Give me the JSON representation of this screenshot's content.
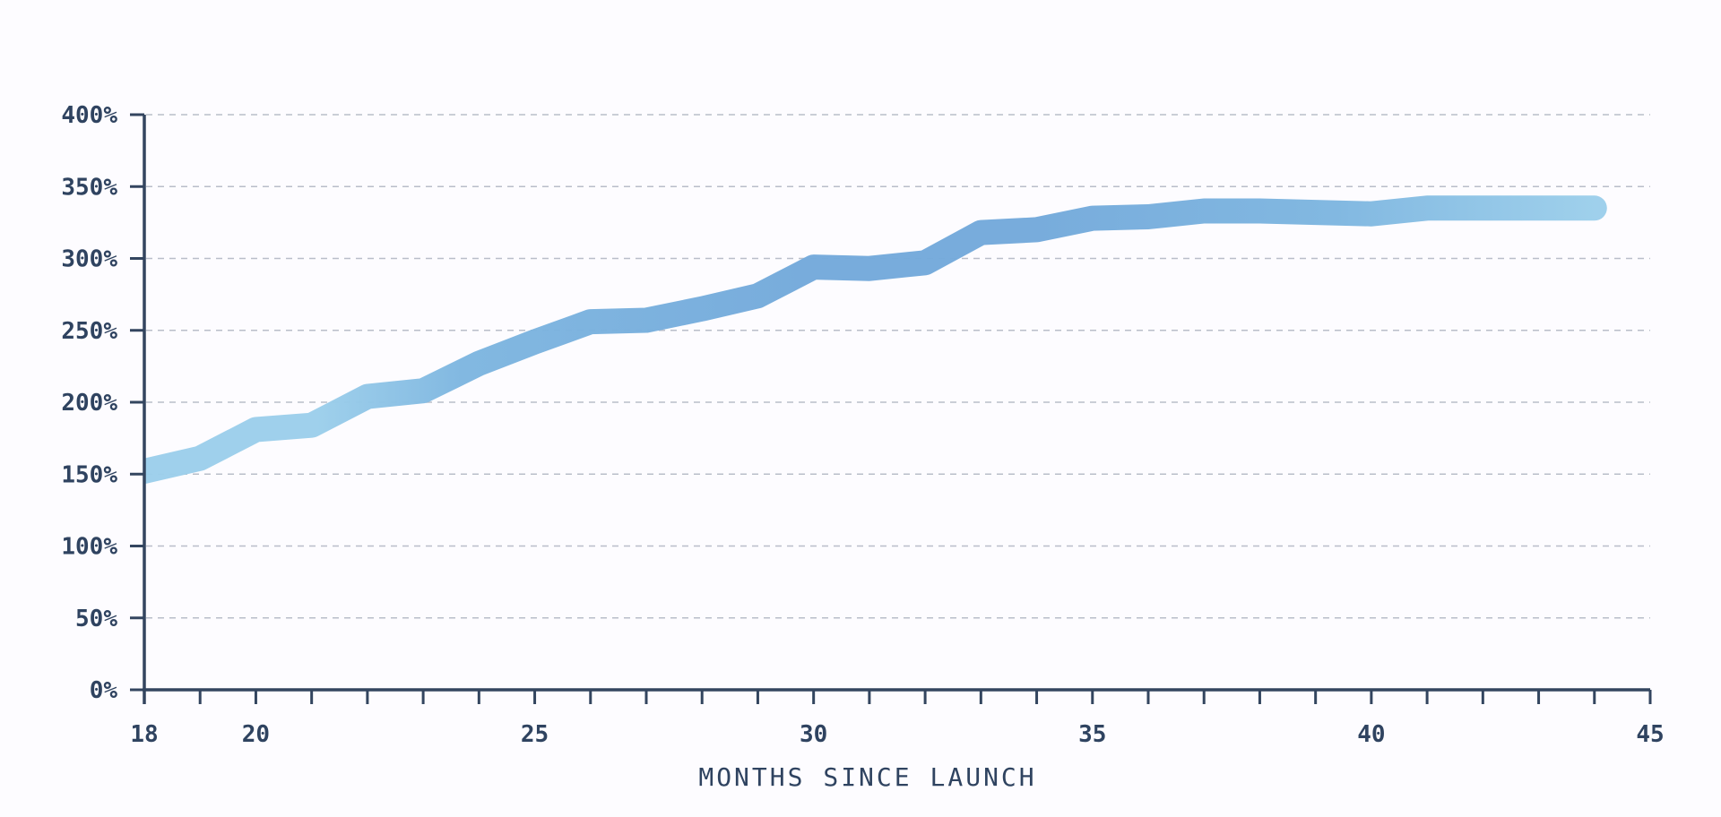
{
  "chart_data": {
    "type": "line",
    "title": "",
    "xlabel": "MONTHS SINCE LAUNCH",
    "ylabel": "",
    "xlim": [
      18,
      45
    ],
    "ylim": [
      0,
      400
    ],
    "x_ticks": [
      18,
      20,
      25,
      30,
      35,
      40,
      45
    ],
    "x_minor_ticks": [
      19,
      20,
      21,
      22,
      23,
      24,
      25,
      26,
      27,
      28,
      29,
      30,
      31,
      32,
      33,
      34,
      35,
      36,
      37,
      38,
      39,
      40,
      41,
      42,
      43,
      44
    ],
    "y_ticks": [
      0,
      50,
      100,
      150,
      200,
      250,
      300,
      350,
      400
    ],
    "y_tick_suffix": "%",
    "grid": true,
    "legend": "none",
    "colors": {
      "line_light": "#9ccfeb",
      "line_mid": "#7eb6e0",
      "line_dark": "#74aadb",
      "axis": "#33455f",
      "grid": "#b9bec9",
      "text": "#2f4360"
    },
    "series": [
      {
        "x": [
          18,
          19,
          20,
          21,
          22,
          23,
          24,
          25,
          26,
          27,
          28,
          29,
          30,
          31,
          32,
          33,
          34,
          35,
          36,
          37,
          38,
          39,
          40,
          41,
          42,
          43,
          44
        ],
        "values": [
          152,
          161,
          181,
          184,
          204,
          208,
          227,
          242,
          256,
          257,
          265,
          274,
          294,
          293,
          297,
          318,
          320,
          328,
          329,
          333,
          333,
          332,
          331,
          335,
          335,
          335,
          335
        ]
      }
    ]
  }
}
